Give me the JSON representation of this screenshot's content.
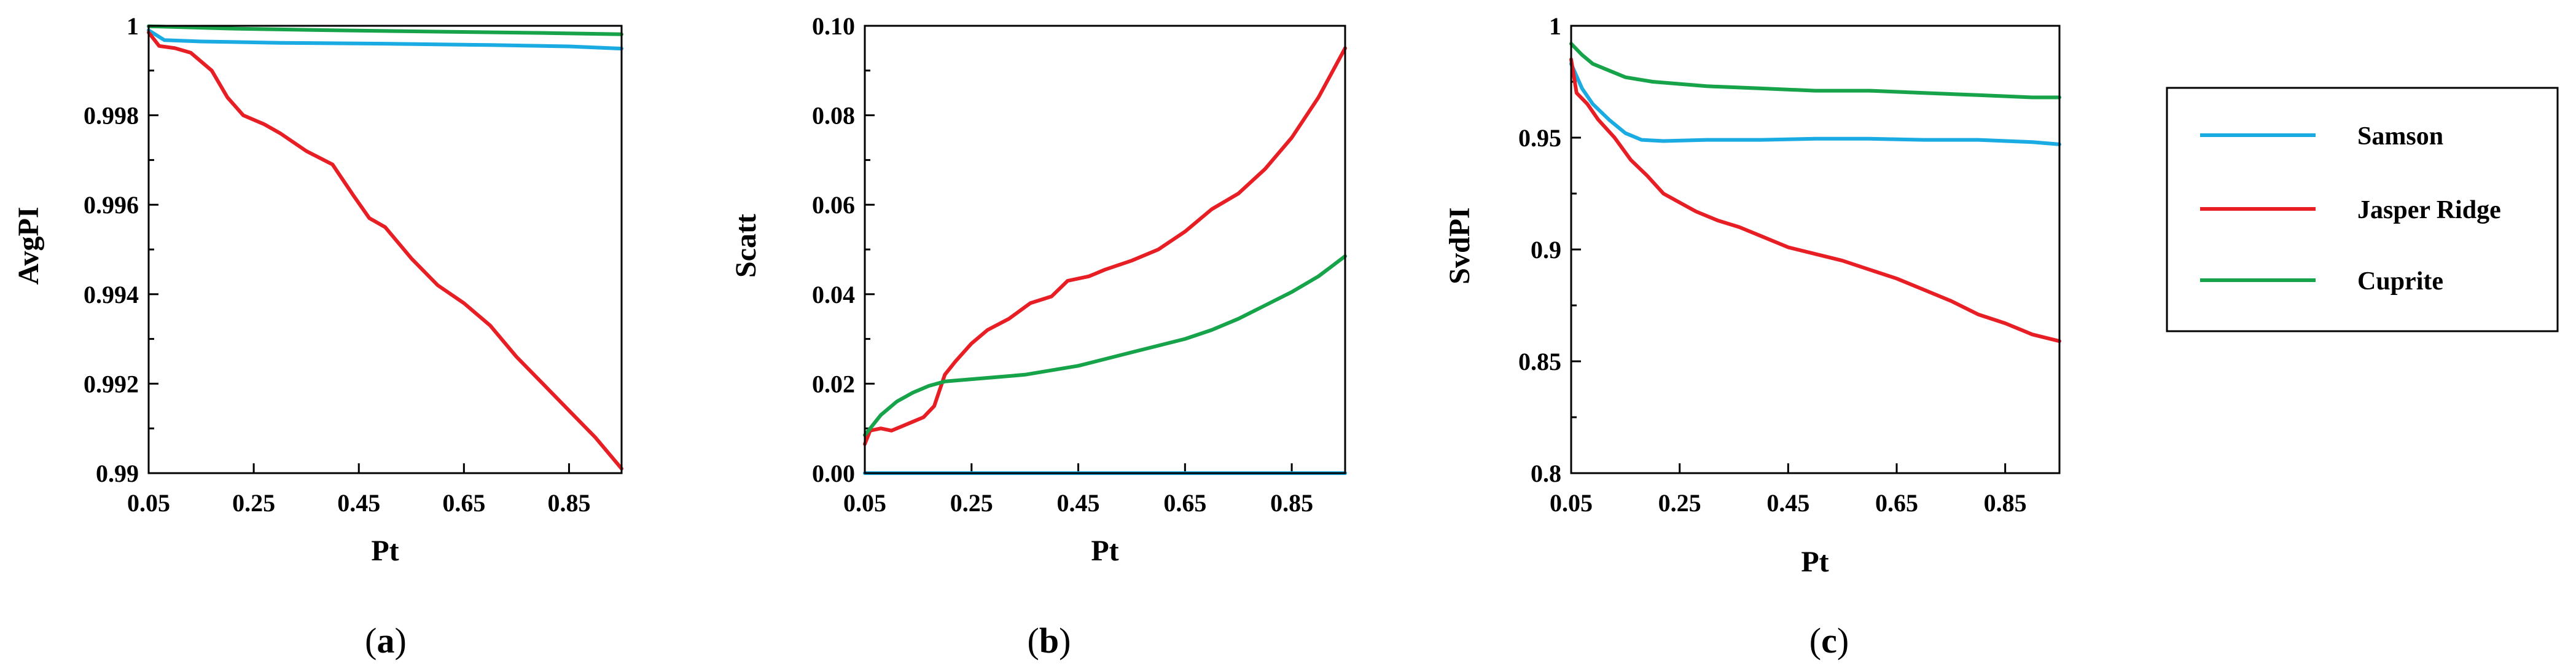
{
  "colors": {
    "Samson": "#1aabe3",
    "Jasper Ridge": "#e81e25",
    "Cuprite": "#17a34a"
  },
  "legend": {
    "entries": [
      "Samson",
      "Jasper Ridge",
      "Cuprite"
    ]
  },
  "chart_data": [
    {
      "type": "line",
      "panel_label": "(a)",
      "panel_letter": "a",
      "xlabel": "Pt",
      "ylabel": "AvgPI",
      "xlim": [
        0.05,
        0.95
      ],
      "ylim": [
        0.99,
        1.0
      ],
      "xticks": [
        0.05,
        0.25,
        0.45,
        0.65,
        0.85
      ],
      "xtick_labels": [
        "0.05",
        "0.25",
        "0.45",
        "0.65",
        "0.85"
      ],
      "yticks": [
        0.99,
        0.992,
        0.994,
        0.996,
        0.998,
        1.0
      ],
      "ytick_labels": [
        "0.99",
        "0.992",
        "0.994",
        "0.996",
        "0.998",
        "1"
      ],
      "y_minor_ticks": [
        0.991,
        0.993,
        0.995,
        0.997,
        0.999
      ],
      "series": [
        {
          "name": "Samson",
          "points": [
            [
              0.05,
              0.9999
            ],
            [
              0.08,
              0.99968
            ],
            [
              0.15,
              0.99965
            ],
            [
              0.3,
              0.99962
            ],
            [
              0.5,
              0.9996
            ],
            [
              0.7,
              0.99957
            ],
            [
              0.85,
              0.99954
            ],
            [
              0.95,
              0.99949
            ]
          ]
        },
        {
          "name": "Jasper Ridge",
          "points": [
            [
              0.05,
              0.99985
            ],
            [
              0.07,
              0.99955
            ],
            [
              0.1,
              0.9995
            ],
            [
              0.13,
              0.9994
            ],
            [
              0.17,
              0.999
            ],
            [
              0.2,
              0.9984
            ],
            [
              0.23,
              0.998
            ],
            [
              0.27,
              0.9978
            ],
            [
              0.3,
              0.9976
            ],
            [
              0.35,
              0.9972
            ],
            [
              0.4,
              0.9969
            ],
            [
              0.44,
              0.9962
            ],
            [
              0.47,
              0.9957
            ],
            [
              0.5,
              0.9955
            ],
            [
              0.55,
              0.9948
            ],
            [
              0.6,
              0.9942
            ],
            [
              0.65,
              0.9938
            ],
            [
              0.7,
              0.9933
            ],
            [
              0.75,
              0.9926
            ],
            [
              0.8,
              0.992
            ],
            [
              0.85,
              0.9914
            ],
            [
              0.9,
              0.9908
            ],
            [
              0.95,
              0.9901
            ]
          ]
        },
        {
          "name": "Cuprite",
          "points": [
            [
              0.05,
              0.99999
            ],
            [
              0.2,
              0.99994
            ],
            [
              0.4,
              0.9999
            ],
            [
              0.6,
              0.99987
            ],
            [
              0.8,
              0.99984
            ],
            [
              0.95,
              0.99981
            ]
          ]
        }
      ]
    },
    {
      "type": "line",
      "panel_label": "(b)",
      "panel_letter": "b",
      "xlabel": "Pt",
      "ylabel": "Scatt",
      "xlim": [
        0.05,
        0.95
      ],
      "ylim": [
        0.0,
        0.1
      ],
      "xticks": [
        0.05,
        0.25,
        0.45,
        0.65,
        0.85
      ],
      "xtick_labels": [
        "0.05",
        "0.25",
        "0.45",
        "0.65",
        "0.85"
      ],
      "yticks": [
        0.0,
        0.02,
        0.04,
        0.06,
        0.08,
        0.1
      ],
      "ytick_labels": [
        "0.00",
        "0.02",
        "0.04",
        "0.06",
        "0.08",
        "0.10"
      ],
      "y_minor_ticks": [
        0.01,
        0.03,
        0.05,
        0.07,
        0.09
      ],
      "series": [
        {
          "name": "Samson",
          "points": [
            [
              0.05,
              0.0
            ],
            [
              0.95,
              0.0
            ]
          ]
        },
        {
          "name": "Jasper Ridge",
          "points": [
            [
              0.05,
              0.0065
            ],
            [
              0.06,
              0.0095
            ],
            [
              0.08,
              0.01
            ],
            [
              0.1,
              0.0095
            ],
            [
              0.12,
              0.0105
            ],
            [
              0.14,
              0.0115
            ],
            [
              0.16,
              0.0125
            ],
            [
              0.18,
              0.015
            ],
            [
              0.2,
              0.022
            ],
            [
              0.22,
              0.025
            ],
            [
              0.25,
              0.029
            ],
            [
              0.28,
              0.032
            ],
            [
              0.32,
              0.0345
            ],
            [
              0.36,
              0.038
            ],
            [
              0.4,
              0.0395
            ],
            [
              0.43,
              0.043
            ],
            [
              0.47,
              0.044
            ],
            [
              0.5,
              0.0455
            ],
            [
              0.55,
              0.0475
            ],
            [
              0.6,
              0.05
            ],
            [
              0.65,
              0.054
            ],
            [
              0.7,
              0.059
            ],
            [
              0.75,
              0.0625
            ],
            [
              0.8,
              0.068
            ],
            [
              0.85,
              0.075
            ],
            [
              0.9,
              0.084
            ],
            [
              0.95,
              0.095
            ]
          ]
        },
        {
          "name": "Cuprite",
          "points": [
            [
              0.05,
              0.0085
            ],
            [
              0.08,
              0.013
            ],
            [
              0.11,
              0.016
            ],
            [
              0.14,
              0.018
            ],
            [
              0.17,
              0.0195
            ],
            [
              0.2,
              0.0205
            ],
            [
              0.25,
              0.021
            ],
            [
              0.3,
              0.0215
            ],
            [
              0.35,
              0.022
            ],
            [
              0.4,
              0.023
            ],
            [
              0.45,
              0.024
            ],
            [
              0.5,
              0.0255
            ],
            [
              0.55,
              0.027
            ],
            [
              0.6,
              0.0285
            ],
            [
              0.65,
              0.03
            ],
            [
              0.7,
              0.032
            ],
            [
              0.75,
              0.0345
            ],
            [
              0.8,
              0.0375
            ],
            [
              0.85,
              0.0405
            ],
            [
              0.9,
              0.044
            ],
            [
              0.95,
              0.0485
            ]
          ]
        }
      ]
    },
    {
      "type": "line",
      "panel_label": "(c)",
      "panel_letter": "c",
      "xlabel": "Pt",
      "ylabel": "SvdPI",
      "xlim": [
        0.05,
        0.95
      ],
      "ylim": [
        0.8,
        1.0
      ],
      "xticks": [
        0.05,
        0.25,
        0.45,
        0.65,
        0.85
      ],
      "xtick_labels": [
        "0.05",
        "0.25",
        "0.45",
        "0.65",
        "0.85"
      ],
      "yticks": [
        0.8,
        0.85,
        0.9,
        0.95,
        1.0
      ],
      "ytick_labels": [
        "0.8",
        "0.85",
        "0.9",
        "0.95",
        "1"
      ],
      "y_minor_ticks": [
        0.825,
        0.875,
        0.925,
        0.975
      ],
      "series": [
        {
          "name": "Samson",
          "points": [
            [
              0.05,
              0.983
            ],
            [
              0.07,
              0.972
            ],
            [
              0.09,
              0.965
            ],
            [
              0.12,
              0.958
            ],
            [
              0.15,
              0.952
            ],
            [
              0.18,
              0.949
            ],
            [
              0.22,
              0.9485
            ],
            [
              0.3,
              0.949
            ],
            [
              0.4,
              0.949
            ],
            [
              0.5,
              0.9495
            ],
            [
              0.6,
              0.9495
            ],
            [
              0.7,
              0.949
            ],
            [
              0.8,
              0.949
            ],
            [
              0.9,
              0.948
            ],
            [
              0.95,
              0.947
            ]
          ]
        },
        {
          "name": "Jasper Ridge",
          "points": [
            [
              0.05,
              0.985
            ],
            [
              0.06,
              0.97
            ],
            [
              0.08,
              0.965
            ],
            [
              0.1,
              0.958
            ],
            [
              0.13,
              0.95
            ],
            [
              0.16,
              0.94
            ],
            [
              0.19,
              0.933
            ],
            [
              0.22,
              0.925
            ],
            [
              0.25,
              0.921
            ],
            [
              0.28,
              0.917
            ],
            [
              0.32,
              0.913
            ],
            [
              0.36,
              0.91
            ],
            [
              0.4,
              0.906
            ],
            [
              0.45,
              0.901
            ],
            [
              0.5,
              0.898
            ],
            [
              0.55,
              0.895
            ],
            [
              0.6,
              0.891
            ],
            [
              0.65,
              0.887
            ],
            [
              0.7,
              0.882
            ],
            [
              0.75,
              0.877
            ],
            [
              0.8,
              0.871
            ],
            [
              0.85,
              0.867
            ],
            [
              0.9,
              0.862
            ],
            [
              0.95,
              0.859
            ]
          ]
        },
        {
          "name": "Cuprite",
          "points": [
            [
              0.05,
              0.992
            ],
            [
              0.07,
              0.987
            ],
            [
              0.09,
              0.983
            ],
            [
              0.12,
              0.98
            ],
            [
              0.15,
              0.977
            ],
            [
              0.2,
              0.975
            ],
            [
              0.3,
              0.973
            ],
            [
              0.4,
              0.972
            ],
            [
              0.5,
              0.971
            ],
            [
              0.6,
              0.971
            ],
            [
              0.7,
              0.97
            ],
            [
              0.8,
              0.969
            ],
            [
              0.9,
              0.968
            ],
            [
              0.95,
              0.968
            ]
          ]
        }
      ]
    }
  ]
}
